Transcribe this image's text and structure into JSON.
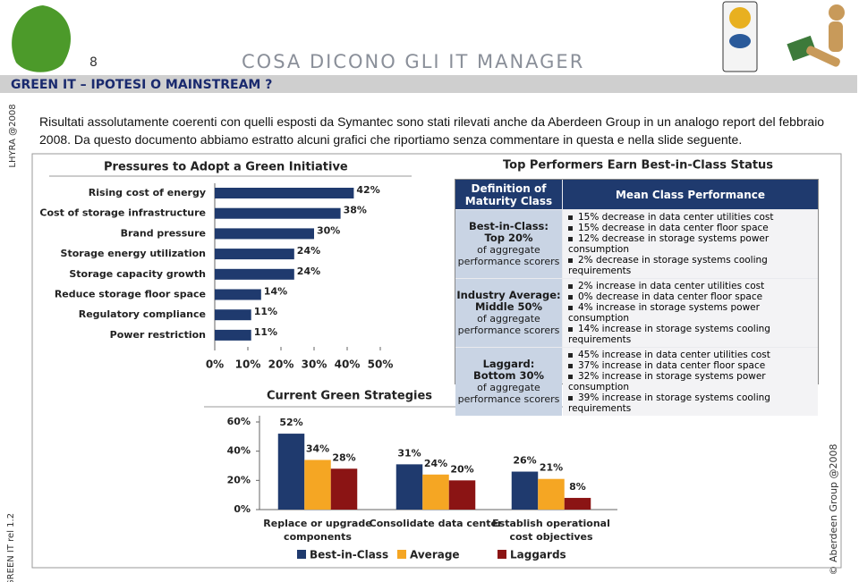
{
  "header": {
    "page_number": "8",
    "title": "COSA DICONO GLI IT MANAGER",
    "section": "GREEN IT – IPOTESI O MAINSTREAM ?",
    "side_left_top": "LHYRA @2008",
    "side_left_bottom": "GREEN IT rel 1.2",
    "side_right": "© Aberdeen Group @2008"
  },
  "text": "Risultati assolutamente coerenti con quelli esposti da Symantec sono stati rilevati anche da Aberdeen Group in un analogo report del febbraio 2008. Da questo documento abbiamo estratto alcuni grafici che riportiamo senza commentare in questa e nella slide seguente.",
  "chart_data": [
    {
      "type": "hbar",
      "title": "Pressures to Adopt a Green Initiative",
      "categories": [
        "Rising cost of energy",
        "Cost of storage infrastructure",
        "Brand pressure",
        "Storage energy utilization",
        "Storage capacity growth",
        "Reduce storage floor space",
        "Regulatory compliance",
        "Power restriction"
      ],
      "values": [
        42,
        38,
        30,
        24,
        24,
        14,
        11,
        11
      ],
      "value_labels": [
        "42%",
        "38%",
        "30%",
        "24%",
        "24%",
        "14%",
        "11%",
        "11%"
      ],
      "color": "#1f3a6e",
      "xlim": [
        0,
        50
      ],
      "xticks": [
        {
          "value": 0,
          "label": "0%"
        },
        {
          "value": 10,
          "label": "10%"
        },
        {
          "value": 20,
          "label": "20%"
        },
        {
          "value": 30,
          "label": "30%"
        },
        {
          "value": 40,
          "label": "40%"
        },
        {
          "value": 50,
          "label": "50%"
        }
      ]
    },
    {
      "type": "grouped_bar",
      "title": "Current Green Strategies",
      "categories": [
        "Replace or upgrade components",
        "Consolidate data center",
        "Establish operational cost objectives"
      ],
      "series": [
        {
          "name": "Best-in-Class",
          "color": "#1f3a6e",
          "values": [
            52,
            31,
            26
          ],
          "value_labels": [
            "52%",
            "31%",
            "26%"
          ]
        },
        {
          "name": "Average",
          "color": "#f5a623",
          "values": [
            34,
            24,
            21
          ],
          "value_labels": [
            "34%",
            "24%",
            "21%"
          ]
        },
        {
          "name": "Laggards",
          "color": "#8b1414",
          "values": [
            28,
            20,
            8
          ],
          "value_labels": [
            "28%",
            "20%",
            "8%"
          ]
        }
      ],
      "ylim": [
        0,
        60
      ],
      "yticks": [
        {
          "value": 0,
          "label": "0%"
        },
        {
          "value": 20,
          "label": "20%"
        },
        {
          "value": 40,
          "label": "40%"
        },
        {
          "value": 60,
          "label": "60%"
        }
      ]
    }
  ],
  "table": {
    "title": "Top Performers Earn Best-in-Class Status",
    "headers": [
      "Definition of Maturity Class",
      "Mean Class Performance"
    ],
    "rows": [
      {
        "label": "Best-in-Class:",
        "detail": "Top 20%",
        "note": "of aggregate performance scorers",
        "items": [
          "15% decrease in data center utilities cost",
          "15% decrease in data center floor space",
          "12% decrease in storage systems power consumption",
          "2% decrease in storage systems cooling requirements"
        ]
      },
      {
        "label": "Industry Average:",
        "detail": "Middle 50%",
        "note": "of aggregate performance scorers",
        "items": [
          "2% increase in data center utilities cost",
          "0% decrease in data center floor space",
          "4% increase in storage systems power consumption",
          "14% increase in storage systems cooling requirements"
        ]
      },
      {
        "label": "Laggard:",
        "detail": "Bottom 30%",
        "note": "of aggregate performance scorers",
        "items": [
          "45% increase in data center utilities cost",
          "37% increase in data center floor space",
          "32% increase in storage systems power consumption",
          "39% increase in storage systems cooling requirements"
        ]
      }
    ]
  }
}
